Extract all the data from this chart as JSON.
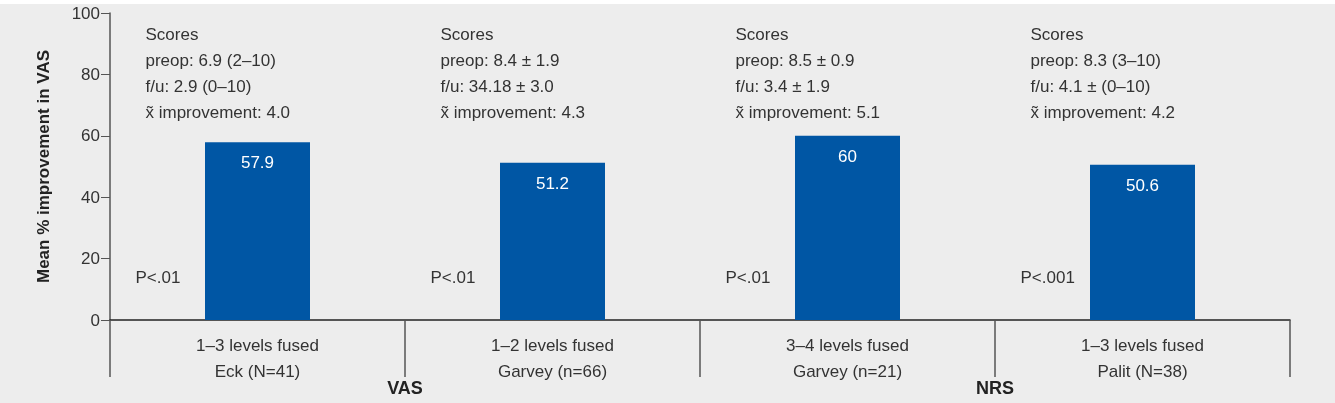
{
  "chart_data": {
    "type": "bar",
    "ylabel": "Mean % improvement in VAS",
    "categories": [
      "1–3 levels fused\nEck (N=41)",
      "1–2 levels fused\nGarvey (n=66)",
      "3–4 levels fused\nGarvey (n=21)",
      "1–3 levels fused\nPalit (N=38)"
    ],
    "values": [
      57.9,
      51.2,
      60,
      50.6
    ],
    "color": "#0056a4",
    "data_labels": true,
    "ylim": [
      0,
      100
    ],
    "yticks": [
      0,
      20,
      40,
      60,
      80,
      100
    ],
    "grid": false,
    "annotations": [
      "Scores\npreop: 6.9 (2–10)\nf/u: 2.9 (0–10)\nx̃ improvement: 4.0",
      "Scores\npreop: 8.4 ± 1.9\nf/u: 34.18 ± 3.0\nx̃ improvement: 4.3",
      "Scores\npreop: 8.5 ± 0.9\nf/u: 3.4 ± 1.9\nx̃ improvement: 5.1",
      "Scores\npreop: 8.3 (3–10)\nf/u: 4.1 ± (0–10)\nx̃ improvement: 4.2",
      "P<.01",
      "P<.01",
      "P<.01",
      "P<.001",
      "VAS",
      "NRS"
    ]
  }
}
